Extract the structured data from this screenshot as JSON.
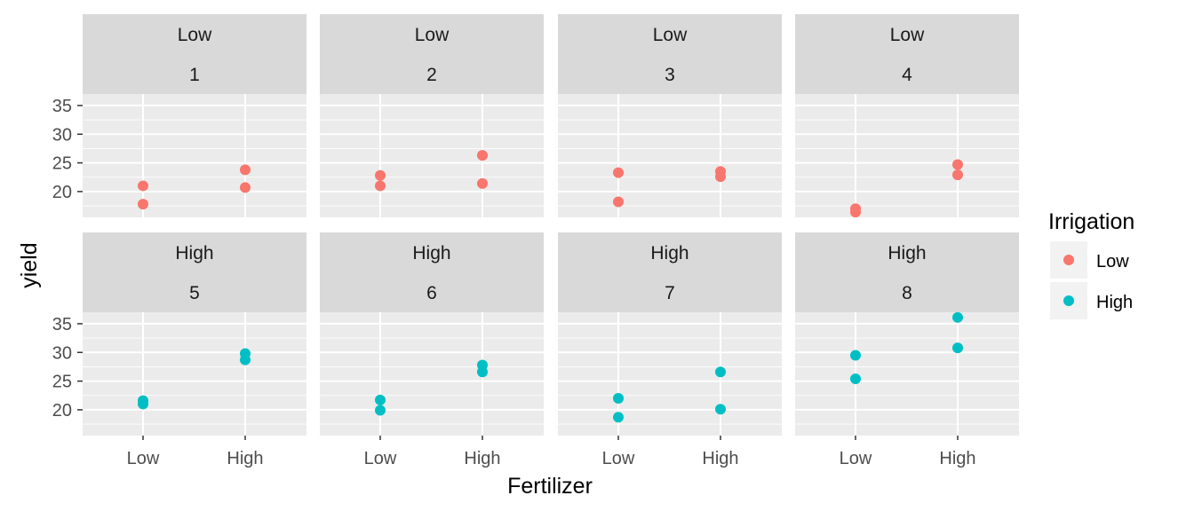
{
  "chart_data": {
    "type": "scatter",
    "facet_vars": [
      "Irrigation",
      "Block"
    ],
    "x_categories": [
      "Low",
      "High"
    ],
    "xlabel": "Fertilizer",
    "ylabel": "yield",
    "ylim": [
      15.5,
      37
    ],
    "y_ticks": [
      20,
      25,
      30,
      35
    ],
    "grid": true,
    "legend": {
      "title": "Irrigation",
      "position": "right",
      "entries": [
        {
          "label": "Low",
          "color": "#F8766D"
        },
        {
          "label": "High",
          "color": "#00BFC4"
        }
      ]
    },
    "panels": [
      {
        "strip": [
          "Low",
          "1"
        ],
        "irrigation": "Low",
        "points": [
          {
            "x": "Low",
            "y": 21.0
          },
          {
            "x": "Low",
            "y": 17.8
          },
          {
            "x": "High",
            "y": 23.8
          },
          {
            "x": "High",
            "y": 20.7
          }
        ]
      },
      {
        "strip": [
          "Low",
          "2"
        ],
        "irrigation": "Low",
        "points": [
          {
            "x": "Low",
            "y": 22.8
          },
          {
            "x": "Low",
            "y": 21.0
          },
          {
            "x": "High",
            "y": 26.3
          },
          {
            "x": "High",
            "y": 21.4
          }
        ]
      },
      {
        "strip": [
          "Low",
          "3"
        ],
        "irrigation": "Low",
        "points": [
          {
            "x": "Low",
            "y": 23.3
          },
          {
            "x": "Low",
            "y": 18.2
          },
          {
            "x": "High",
            "y": 23.5
          },
          {
            "x": "High",
            "y": 22.6
          }
        ]
      },
      {
        "strip": [
          "Low",
          "4"
        ],
        "irrigation": "Low",
        "points": [
          {
            "x": "Low",
            "y": 17.0
          },
          {
            "x": "Low",
            "y": 16.4
          },
          {
            "x": "High",
            "y": 24.7
          },
          {
            "x": "High",
            "y": 22.9
          }
        ]
      },
      {
        "strip": [
          "High",
          "5"
        ],
        "irrigation": "High",
        "points": [
          {
            "x": "Low",
            "y": 21.6
          },
          {
            "x": "Low",
            "y": 21.0
          },
          {
            "x": "High",
            "y": 29.8
          },
          {
            "x": "High",
            "y": 28.7
          }
        ]
      },
      {
        "strip": [
          "High",
          "6"
        ],
        "irrigation": "High",
        "points": [
          {
            "x": "Low",
            "y": 21.7
          },
          {
            "x": "Low",
            "y": 19.9
          },
          {
            "x": "High",
            "y": 27.8
          },
          {
            "x": "High",
            "y": 26.6
          }
        ]
      },
      {
        "strip": [
          "High",
          "7"
        ],
        "irrigation": "High",
        "points": [
          {
            "x": "Low",
            "y": 22.0
          },
          {
            "x": "Low",
            "y": 18.7
          },
          {
            "x": "High",
            "y": 26.6
          },
          {
            "x": "High",
            "y": 20.1
          }
        ]
      },
      {
        "strip": [
          "High",
          "8"
        ],
        "irrigation": "High",
        "points": [
          {
            "x": "Low",
            "y": 29.5
          },
          {
            "x": "Low",
            "y": 25.4
          },
          {
            "x": "High",
            "y": 36.1
          },
          {
            "x": "High",
            "y": 30.8
          }
        ]
      }
    ]
  }
}
